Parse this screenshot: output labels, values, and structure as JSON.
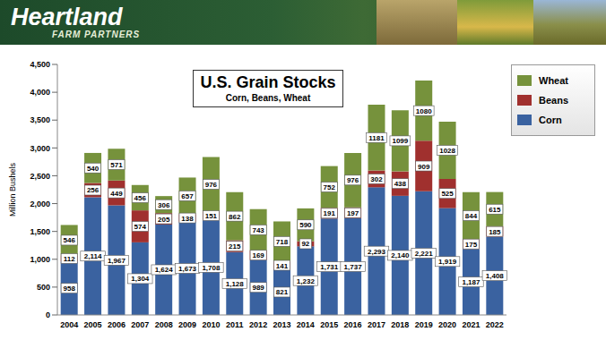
{
  "header": {
    "logo": "Heartland",
    "tagline": "FARM PARTNERS"
  },
  "chart_data": {
    "type": "bar",
    "title": "U.S. Grain Stocks",
    "subtitle": "Corn, Beans, Wheat",
    "y_label": "Million Bushels",
    "categories": [
      "2004",
      "2005",
      "2006",
      "2007",
      "2008",
      "2009",
      "2010",
      "2011",
      "2012",
      "2013",
      "2014",
      "2015",
      "2016",
      "2017",
      "2018",
      "2019",
      "2020",
      "2021",
      "2022"
    ],
    "series": [
      {
        "name": "Corn",
        "color": "#3A62A0",
        "values": [
          958,
          2114,
          1967,
          1304,
          1624,
          1673,
          1708,
          1128,
          989,
          821,
          1232,
          1731,
          1737,
          2293,
          2140,
          2221,
          1919,
          1187,
          1408
        ],
        "value_labels": [
          "958",
          "2,114",
          "1,967",
          "1,304",
          "1,624",
          "1,673",
          "1,708",
          "1,128",
          "989",
          "821",
          "1,232",
          "1,731",
          "1,737",
          "2,293",
          "2,140",
          "2,221",
          "1,919",
          "1,187",
          "1,408"
        ]
      },
      {
        "name": "Beans",
        "color": "#A0302E",
        "values": [
          112,
          256,
          449,
          574,
          205,
          138,
          151,
          215,
          169,
          141,
          92,
          191,
          197,
          302,
          438,
          909,
          525,
          175,
          185
        ]
      },
      {
        "name": "Wheat",
        "color": "#76923C",
        "values": [
          546,
          540,
          571,
          456,
          306,
          657,
          976,
          862,
          743,
          718,
          590,
          752,
          976,
          1181,
          1099,
          1080,
          1028,
          844,
          615
        ]
      }
    ],
    "stacked": true,
    "data_labels": true,
    "grid": false,
    "legend": "top-right",
    "ylim": [
      0,
      4500
    ],
    "yticks": [
      0,
      500,
      {
        "value": 1000,
        "label": "1,000"
      },
      {
        "value": 1500,
        "label": "1,500"
      },
      {
        "value": 2000,
        "label": "2,000"
      },
      {
        "value": 2500,
        "label": "2,500"
      },
      {
        "value": 3000,
        "label": "3,000"
      },
      {
        "value": 3500,
        "label": "3,500"
      },
      {
        "value": 4000,
        "label": "4,000"
      },
      {
        "value": 4500,
        "label": "4,500"
      }
    ]
  }
}
